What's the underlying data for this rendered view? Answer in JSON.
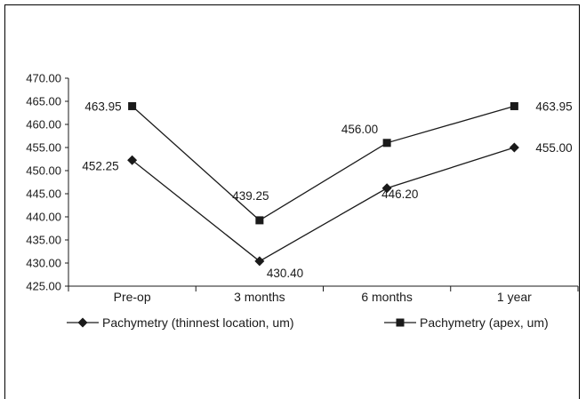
{
  "chart_data": {
    "type": "line",
    "categories": [
      "Pre-op",
      "3 months",
      "6 months",
      "1 year"
    ],
    "ylim": [
      425,
      470
    ],
    "yticks": [
      "425.00",
      "430.00",
      "435.00",
      "440.00",
      "445.00",
      "450.00",
      "455.00",
      "460.00",
      "465.00",
      "470.00"
    ],
    "grid": false,
    "legend_position": "bottom",
    "series": [
      {
        "name": "Pachymetry (thinnest location, um)",
        "values": [
          452.25,
          430.4,
          446.2,
          455.0
        ],
        "labels": [
          "452.25",
          "430.40",
          "446.20",
          "455.00"
        ],
        "marker": "diamond",
        "color": "#1a1a1a"
      },
      {
        "name": "Pachymetry (apex, um)",
        "values": [
          463.95,
          439.25,
          456.0,
          463.95
        ],
        "labels": [
          "463.95",
          "439.25",
          "456.00",
          "463.95"
        ],
        "marker": "square",
        "color": "#1a1a1a"
      }
    ]
  }
}
